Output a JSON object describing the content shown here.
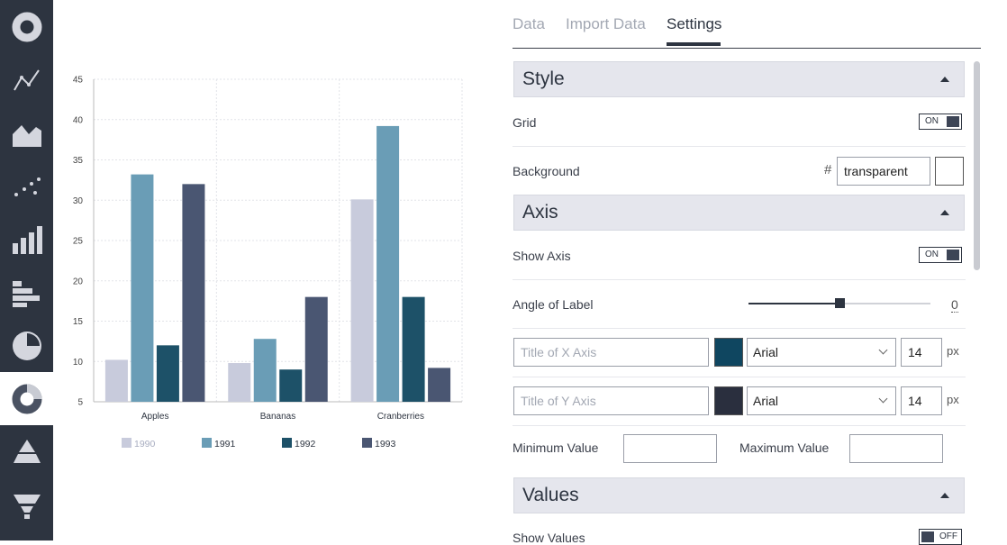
{
  "sidebar": {
    "items": [
      {
        "icon": "donut-chart-icon"
      },
      {
        "icon": "line-chart-icon"
      },
      {
        "icon": "area-chart-icon"
      },
      {
        "icon": "scatter-chart-icon"
      },
      {
        "icon": "bar-chart-icon"
      },
      {
        "icon": "horizontal-bar-chart-icon"
      },
      {
        "icon": "pie-chart-icon"
      },
      {
        "icon": "ring-chart-icon",
        "active": true
      },
      {
        "icon": "pyramid-chart-icon"
      },
      {
        "icon": "funnel-chart-icon"
      }
    ],
    "colors": {
      "bg": "#2d3440",
      "icon": "#d4d6de"
    }
  },
  "chart_data": {
    "type": "bar",
    "categories": [
      "Apples",
      "Bananas",
      "Cranberries"
    ],
    "series": [
      {
        "name": "1990",
        "values": [
          10.2,
          9.8,
          30.1
        ],
        "color": "#c8cbdc"
      },
      {
        "name": "1991",
        "values": [
          33.2,
          12.8,
          39.2
        ],
        "color": "#6a9db6"
      },
      {
        "name": "1992",
        "values": [
          12.0,
          9.0,
          18.0
        ],
        "color": "#1d5168"
      },
      {
        "name": "1993",
        "values": [
          32.0,
          18.0,
          9.2
        ],
        "color": "#4a5672"
      }
    ],
    "ylim": [
      5,
      45
    ],
    "yticks": [
      "5",
      "10",
      "15",
      "20",
      "25",
      "30",
      "35",
      "40",
      "45"
    ],
    "grid": true,
    "legend": "bottom",
    "title": "",
    "xlabel": "",
    "ylabel": ""
  },
  "tabs": [
    {
      "label": "Data"
    },
    {
      "label": "Import Data"
    },
    {
      "label": "Settings",
      "active": true
    }
  ],
  "style": {
    "title": "Style",
    "grid_label": "Grid",
    "grid_toggle": "ON",
    "background_label": "Background",
    "hash": "#",
    "background_value": "transparent",
    "background_swatch": "#ffffff"
  },
  "axis": {
    "title": "Axis",
    "show_axis_label": "Show Axis",
    "show_axis_toggle": "ON",
    "angle_label": "Angle of Label",
    "angle_value": "0",
    "angle_fraction": 0.5,
    "x_title_placeholder": "Title of X Axis",
    "x_color": "#0f4660",
    "x_font": "Arial",
    "x_size": "14",
    "y_title_placeholder": "Title of Y Axis",
    "y_color": "#2a2f3e",
    "y_font": "Arial",
    "y_size": "14",
    "unit": "px",
    "min_label": "Minimum Value",
    "max_label": "Maximum Value"
  },
  "values": {
    "title": "Values",
    "show_values_label": "Show Values",
    "show_values_toggle": "OFF"
  }
}
